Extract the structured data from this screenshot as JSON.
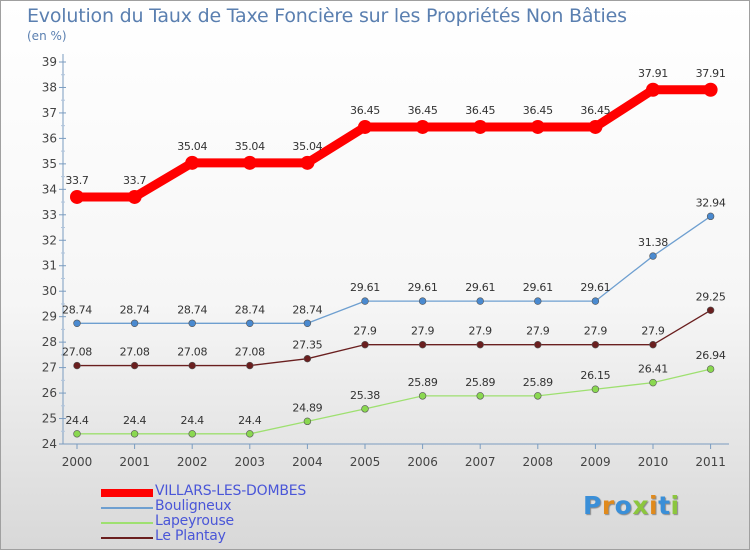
{
  "title": "Evolution du Taux de Taxe Foncière sur les Propriétés Non Bâties",
  "unit_label": "(en %)",
  "logo": [
    "P",
    "r",
    "o",
    "x",
    "i",
    "t",
    "i"
  ],
  "logo_colors": [
    "#3a8fd8",
    "#e08a1c",
    "#3a8fd8",
    "#8cc63e",
    "#e08a1c",
    "#3a8fd8",
    "#8cc63e"
  ],
  "chart_data": {
    "type": "line",
    "categories": [
      "2000",
      "2001",
      "2002",
      "2003",
      "2004",
      "2005",
      "2006",
      "2007",
      "2008",
      "2009",
      "2010",
      "2011"
    ],
    "ylim": [
      24,
      39
    ],
    "yticks": [
      24,
      25,
      26,
      27,
      28,
      29,
      30,
      31,
      32,
      33,
      34,
      35,
      36,
      37,
      38,
      39
    ],
    "grid": false,
    "legend_position": "bottom-left",
    "series": [
      {
        "name": "VILLARS-LES-DOMBES",
        "color": "#ff0000",
        "values": [
          33.7,
          33.7,
          35.04,
          35.04,
          35.04,
          36.45,
          36.45,
          36.45,
          36.45,
          36.45,
          37.91,
          37.91
        ],
        "labels": [
          "33.7",
          "33.7",
          "35.04",
          "35.04",
          "35.04",
          "36.45",
          "36.45",
          "36.45",
          "36.45",
          "36.45",
          "37.91",
          "37.91"
        ]
      },
      {
        "name": "Bouligneux",
        "color": "#6e9fd0",
        "marker": "#4a8ad0",
        "values": [
          28.74,
          28.74,
          28.74,
          28.74,
          28.74,
          29.61,
          29.61,
          29.61,
          29.61,
          29.61,
          31.38,
          32.94
        ],
        "labels": [
          "28.74",
          "28.74",
          "28.74",
          "28.74",
          "28.74",
          "29.61",
          "29.61",
          "29.61",
          "29.61",
          "29.61",
          "31.38",
          "32.94"
        ]
      },
      {
        "name": "Lapeyrouse",
        "color": "#9ee070",
        "marker": "#8ad850",
        "values": [
          24.4,
          24.4,
          24.4,
          24.4,
          24.89,
          25.38,
          25.89,
          25.89,
          25.89,
          26.15,
          26.41,
          26.94
        ],
        "labels": [
          "24.4",
          "24.4",
          "24.4",
          "24.4",
          "24.89",
          "25.38",
          "25.89",
          "25.89",
          "25.89",
          "26.15",
          "26.41",
          "26.94"
        ]
      },
      {
        "name": "Le Plantay",
        "color": "#6a1f1f",
        "marker": "#6a1f1f",
        "values": [
          27.08,
          27.08,
          27.08,
          27.08,
          27.35,
          27.9,
          27.9,
          27.9,
          27.9,
          27.9,
          27.9,
          29.25
        ],
        "labels": [
          "27.08",
          "27.08",
          "27.08",
          "27.08",
          "27.35",
          "27.9",
          "27.9",
          "27.9",
          "27.9",
          "27.9",
          "27.9",
          "29.25"
        ]
      }
    ]
  }
}
